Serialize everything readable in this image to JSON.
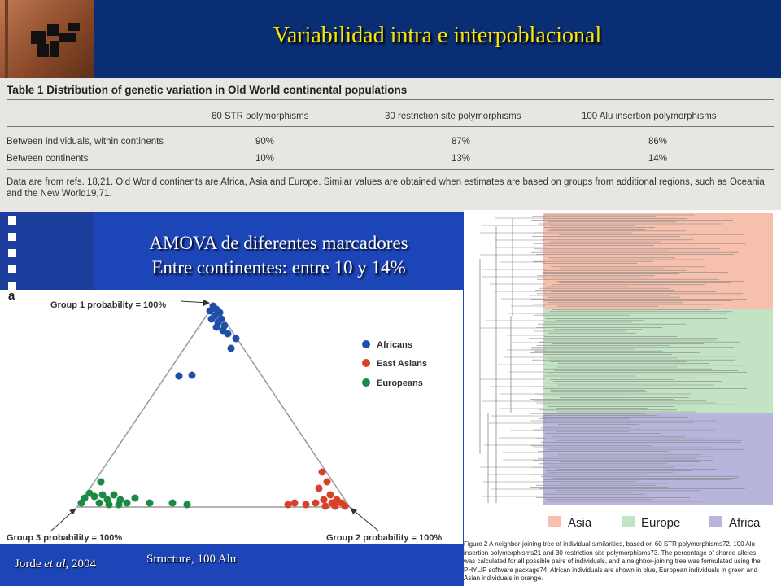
{
  "slide": {
    "title": "Variabilidad intra e interpoblacional",
    "amova_line1": "AMOVA de diferentes marcadores",
    "amova_line2": "Entre continentes: entre 10 y 14%",
    "citation": "Jorde",
    "citation_italic": "et al",
    "citation_tail": ", 2004",
    "structure_label": "Structure, 100 Alu"
  },
  "table": {
    "caption": "Table 1  Distribution of genetic variation in Old World continental populations",
    "columns": [
      "60 STR polymorphisms",
      "30 restriction site polymorphisms",
      "100 Alu insertion polymorphisms"
    ],
    "rows": [
      {
        "label": "Between individuals, within continents",
        "values": [
          "90%",
          "87%",
          "86%"
        ]
      },
      {
        "label": "Between continents",
        "values": [
          "10%",
          "13%",
          "14%"
        ]
      }
    ],
    "footnote": "Data are from refs. 18,21. Old World continents are Africa, Asia and Europe. Similar values are obtained when estimates are based on groups from additional regions, such as Oceania and the New World19,71."
  },
  "structure_plot": {
    "panel_letter": "a",
    "group1": "Group 1 probability = 100%",
    "group2": "Group 2 probability = 100%",
    "group3": "Group 3 probability = 100%",
    "legend": [
      {
        "name": "Africans",
        "color": "#1f4fa8"
      },
      {
        "name": "East Asians",
        "color": "#d8402a"
      },
      {
        "name": "Europeans",
        "color": "#1a8a45"
      }
    ]
  },
  "tree_figure": {
    "legend": [
      {
        "name": "Asia",
        "color": "#f6c0ac"
      },
      {
        "name": "Europe",
        "color": "#c2e4c4"
      },
      {
        "name": "Africa",
        "color": "#b7b5dc"
      }
    ],
    "caption_lines": [
      "Figure 2  A neighbor-joining tree of individual similarities, based on 60 STR polymorphisms72, 100 Alu",
      "insertion polymorphisms21 and 30 restriction site polymorphisms73. The percentage of shared alleles",
      "was calculated for all possible pairs of individuals, and a neighbor-joining tree was formulated using the",
      "PHYLIP software package74. African individuals are shown in blue, European individuals in green and",
      "Asian individuals in orange."
    ]
  }
}
